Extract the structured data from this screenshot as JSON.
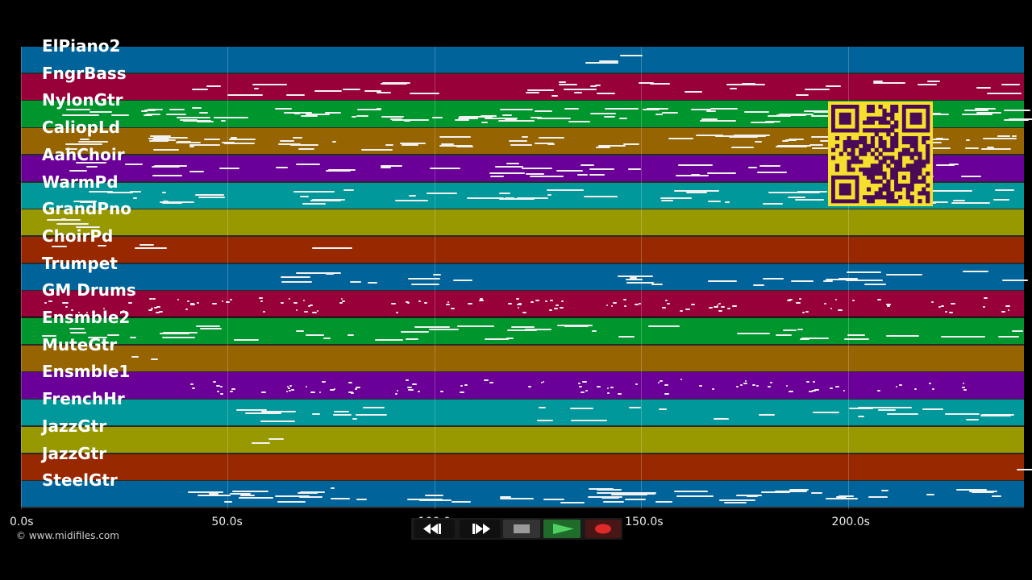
{
  "piano_roll": {
    "tracks": [
      {
        "name": "ElPiano2",
        "color": "#00649a"
      },
      {
        "name": "FngrBass",
        "color": "#98003a"
      },
      {
        "name": "NylonGtr",
        "color": "#00962e"
      },
      {
        "name": "CaliopLd",
        "color": "#966400"
      },
      {
        "name": "AahChoir",
        "color": "#6a0098"
      },
      {
        "name": "WarmPd",
        "color": "#00989a"
      },
      {
        "name": "GrandPno",
        "color": "#989800"
      },
      {
        "name": "ChoirPd",
        "color": "#982800"
      },
      {
        "name": "Trumpet",
        "color": "#00649a"
      },
      {
        "name": "GM Drums",
        "color": "#98003a"
      },
      {
        "name": "Ensmble2",
        "color": "#00962e"
      },
      {
        "name": "MuteGtr",
        "color": "#966400"
      },
      {
        "name": "Ensmble1",
        "color": "#6a0098"
      },
      {
        "name": "FrenchHr",
        "color": "#00989a"
      },
      {
        "name": "JazzGtr",
        "color": "#989800"
      },
      {
        "name": "JazzGtr",
        "color": "#982800"
      },
      {
        "name": "SteelGtr",
        "color": "#00649a"
      }
    ],
    "time_axis": {
      "ticks": [
        "0.0s",
        "50.0s",
        "100.0s",
        "150.0s",
        "200.0s"
      ],
      "tick_values": [
        0,
        50,
        100,
        150,
        200
      ],
      "max_seconds": 242.6
    }
  },
  "copyright": "© www.midifiles.com",
  "transport": {
    "buttons": [
      {
        "icon": "rewind-icon"
      },
      {
        "icon": "fast-forward-icon"
      },
      {
        "icon": "stop-icon"
      },
      {
        "icon": "play-icon"
      },
      {
        "icon": "record-icon"
      }
    ]
  },
  "qr_code": {
    "icon": "qr-code-icon",
    "color": "#f7df2e"
  }
}
